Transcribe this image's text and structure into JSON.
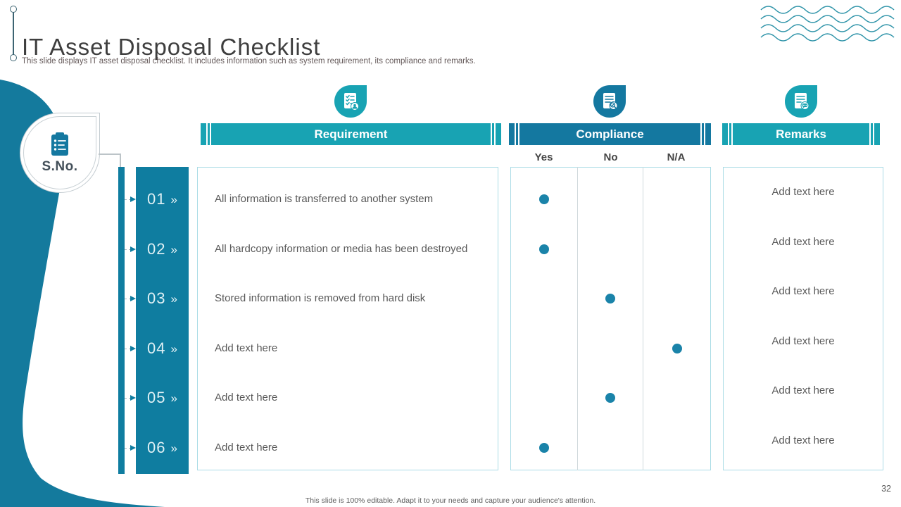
{
  "slide": {
    "title": "IT Asset Disposal Checklist",
    "subtitle": "This slide displays IT asset disposal checklist. It includes information such as system requirement, its compliance and remarks.",
    "footer": "This slide is 100% editable. Adapt it to your needs and capture your audience's attention.",
    "page_number": "32"
  },
  "table": {
    "sno_label": "S.No.",
    "chevron": "»",
    "columns": {
      "requirement": "Requirement",
      "compliance": "Compliance",
      "remarks": "Remarks"
    },
    "compliance_options": [
      "Yes",
      "No",
      "N/A"
    ],
    "rows": [
      {
        "num": "01",
        "requirement": "All information is transferred to another system",
        "compliance": "Yes",
        "remarks": "Add text here"
      },
      {
        "num": "02",
        "requirement": "All hardcopy information or media has been destroyed",
        "compliance": "Yes",
        "remarks": "Add text here"
      },
      {
        "num": "03",
        "requirement": "Stored information is removed from hard disk",
        "compliance": "No",
        "remarks": "Add text here"
      },
      {
        "num": "04",
        "requirement": "Add text here",
        "compliance": "N/A",
        "remarks": "Add text here"
      },
      {
        "num": "05",
        "requirement": "Add text here",
        "compliance": "No",
        "remarks": "Add text here"
      },
      {
        "num": "06",
        "requirement": "Add text here",
        "compliance": "Yes",
        "remarks": "Add text here"
      }
    ]
  },
  "icons": {
    "sno": "clipboard-checklist-icon",
    "requirement": "document-checklist-person-icon",
    "compliance": "document-magnifier-check-icon",
    "remarks": "document-speech-bubble-icon",
    "decoration": "wave-lines"
  },
  "colors": {
    "teal_dark": "#0f7da0",
    "teal_light": "#18a3b3",
    "compliance_blue": "#1478a0",
    "dot": "#1a83a9",
    "table_border": "#abdce6",
    "text_gray": "#595959"
  }
}
